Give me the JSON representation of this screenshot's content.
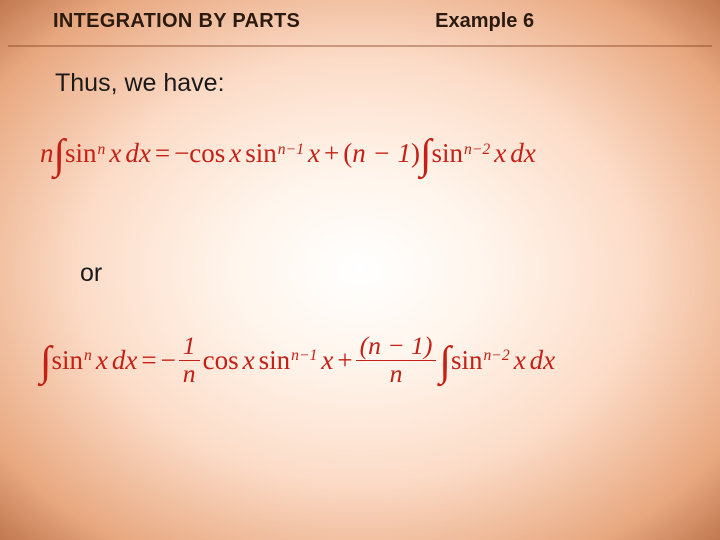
{
  "header": {
    "title_left": "INTEGRATION BY PARTS",
    "title_right": "Example 6"
  },
  "body": {
    "intro": "Thus, we have:",
    "or": "or"
  },
  "equations": {
    "eq1": {
      "coef": "n",
      "func": "sin",
      "exp1": "n",
      "var": "x",
      "diff": "dx",
      "eq": "=",
      "neg": "−",
      "cos": "cos",
      "exp2": "n−1",
      "plus": "+",
      "paren_l": "(",
      "n_minus_1": "n − 1",
      "paren_r": ")",
      "exp3": "n−2"
    },
    "eq2": {
      "func": "sin",
      "exp1": "n",
      "var": "x",
      "diff": "dx",
      "eq": "=",
      "neg": "−",
      "frac1_num": "1",
      "frac1_den": "n",
      "cos": "cos",
      "exp2": "n−1",
      "plus": "+",
      "frac2_num": "(n − 1)",
      "frac2_den": "n",
      "exp3": "n−2"
    }
  },
  "style": {
    "math_color": "#c42015",
    "text_color": "#1a1a1a",
    "header_color": "#2a1a10",
    "rule_color": "rgba(130,60,30,0.4)"
  }
}
